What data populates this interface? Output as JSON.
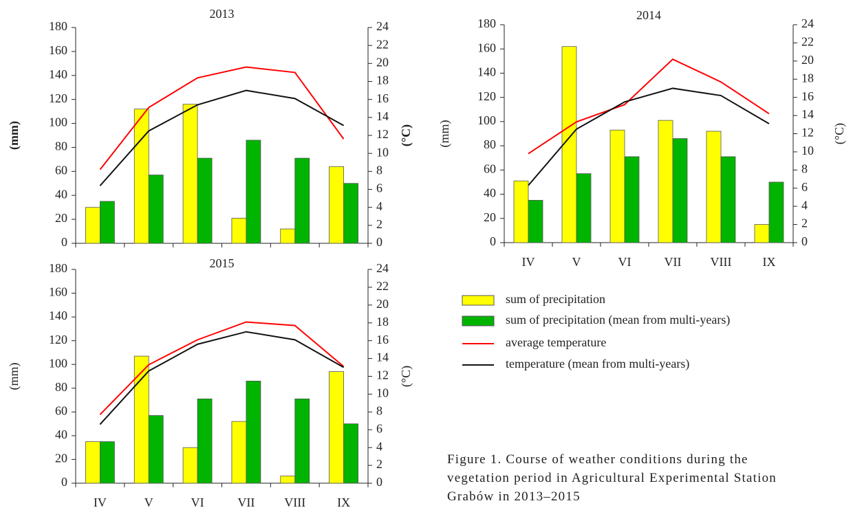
{
  "chart_data": [
    {
      "type": "bar",
      "title": "2013",
      "y_label": "(mm)",
      "y2_label": "(°C)",
      "axis_label_bold": true,
      "categories": [
        null,
        null,
        null,
        null,
        null,
        null
      ],
      "ylim": [
        0,
        180
      ],
      "yticks": [
        0,
        20,
        40,
        60,
        80,
        100,
        120,
        140,
        160,
        180
      ],
      "y2lim": [
        0,
        24
      ],
      "y2ticks": [
        0,
        2,
        4,
        6,
        8,
        10,
        12,
        14,
        16,
        18,
        20,
        22,
        24
      ],
      "series": [
        {
          "name": "sum of precipitation",
          "type": "bar",
          "color": "#ffff00",
          "values": [
            30,
            112,
            116,
            21,
            12,
            64
          ]
        },
        {
          "name": "sum of precipitation (mean from multi-years)",
          "type": "bar",
          "color": "#00b400",
          "values": [
            35,
            57,
            71,
            86,
            71,
            50
          ]
        },
        {
          "name": "average temperature",
          "type": "line",
          "axis": "y2",
          "color": "#ff0000",
          "values": [
            8.2,
            15.1,
            18.4,
            19.6,
            19.0,
            11.6
          ]
        },
        {
          "name": "temperature (mean from multi-years)",
          "type": "line",
          "axis": "y2",
          "color": "#111111",
          "values": [
            6.4,
            12.5,
            15.4,
            17.0,
            16.1,
            13.1
          ]
        }
      ]
    },
    {
      "type": "bar",
      "title": "2014",
      "y_label": "(mm)",
      "y2_label": "(°C)",
      "axis_label_bold": false,
      "categories": [
        "IV",
        "V",
        "VI",
        "VII",
        "VIII",
        "IX"
      ],
      "ylim": [
        0,
        180
      ],
      "yticks": [
        0,
        20,
        40,
        60,
        80,
        100,
        120,
        140,
        160,
        180
      ],
      "y2lim": [
        0,
        24
      ],
      "y2ticks": [
        0,
        2,
        4,
        6,
        8,
        10,
        12,
        14,
        16,
        18,
        20,
        22,
        24
      ],
      "series": [
        {
          "name": "sum of precipitation",
          "type": "bar",
          "color": "#ffff00",
          "values": [
            51,
            162,
            93,
            101,
            92,
            15
          ]
        },
        {
          "name": "sum of precipitation (mean from multi-years)",
          "type": "bar",
          "color": "#00b400",
          "values": [
            35,
            57,
            71,
            86,
            71,
            50
          ]
        },
        {
          "name": "average temperature",
          "type": "line",
          "axis": "y2",
          "color": "#ff0000",
          "values": [
            9.8,
            13.3,
            15.2,
            20.2,
            17.7,
            14.2
          ]
        },
        {
          "name": "temperature (mean from multi-years)",
          "type": "line",
          "axis": "y2",
          "color": "#111111",
          "values": [
            6.3,
            12.5,
            15.5,
            17.0,
            16.2,
            13.1
          ]
        }
      ]
    },
    {
      "type": "bar",
      "title": "2015",
      "y_label": "(mm)",
      "y2_label": "(°C)",
      "axis_label_bold": false,
      "categories": [
        "IV",
        "V",
        "VI",
        "VII",
        "VIII",
        "IX"
      ],
      "ylim": [
        0,
        180
      ],
      "yticks": [
        0,
        20,
        40,
        60,
        80,
        100,
        120,
        140,
        160,
        180
      ],
      "y2lim": [
        0,
        24
      ],
      "y2ticks": [
        0,
        2,
        4,
        6,
        8,
        10,
        12,
        14,
        16,
        18,
        20,
        22,
        24
      ],
      "series": [
        {
          "name": "sum of precipitation",
          "type": "bar",
          "color": "#ffff00",
          "values": [
            35,
            107,
            30,
            52,
            6,
            94
          ]
        },
        {
          "name": "sum of precipitation (mean from multi-years)",
          "type": "bar",
          "color": "#00b400",
          "values": [
            35,
            57,
            71,
            86,
            71,
            50
          ]
        },
        {
          "name": "average temperature",
          "type": "line",
          "axis": "y2",
          "color": "#ff0000",
          "values": [
            7.7,
            13.3,
            16.1,
            18.1,
            17.7,
            13.1
          ]
        },
        {
          "name": "temperature (mean from multi-years)",
          "type": "line",
          "axis": "y2",
          "color": "#111111",
          "values": [
            6.6,
            12.6,
            15.6,
            17.0,
            16.1,
            13.0
          ]
        }
      ]
    }
  ],
  "caption": [
    "Figure 1. Course of weather conditions during the",
    "vegetation period in Agricultural Experimental Station",
    "Grabów in 2013–2015"
  ]
}
